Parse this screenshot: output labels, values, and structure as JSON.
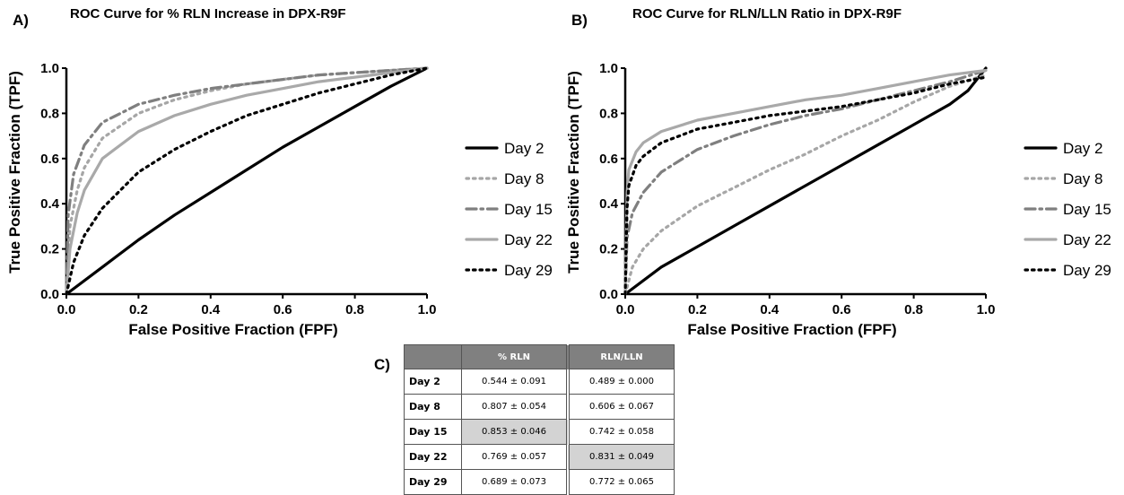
{
  "colors": {
    "day2": "#000000",
    "day8": "#a6a6a6",
    "day15": "#7f7f7f",
    "day22": "#a9a9a9",
    "day29": "#000000",
    "highlight": "#d3d3d3",
    "table_header": "#808080"
  },
  "chart_data": [
    {
      "type": "line",
      "panel": "A)",
      "title": "ROC Curve for % RLN Increase in DPX-R9F",
      "xlabel": "False Positive Fraction (FPF)",
      "ylabel": "True Positive Fraction (TPF)",
      "xlim": [
        0,
        1
      ],
      "ylim": [
        0,
        1
      ],
      "xticks": [
        "0.0",
        "0.2",
        "0.4",
        "0.6",
        "0.8",
        "1.0"
      ],
      "yticks": [
        "0.0",
        "0.2",
        "0.4",
        "0.6",
        "0.8",
        "1.0"
      ],
      "grid": false,
      "legend_position": "right",
      "series": [
        {
          "name": "Day 2",
          "style": "solid",
          "x": [
            0,
            0.1,
            0.2,
            0.3,
            0.4,
            0.5,
            0.6,
            0.7,
            0.8,
            0.9,
            1.0
          ],
          "y": [
            0,
            0.12,
            0.24,
            0.35,
            0.45,
            0.55,
            0.65,
            0.74,
            0.83,
            0.92,
            1.0
          ]
        },
        {
          "name": "Day 8",
          "style": "dotted",
          "x": [
            0,
            0.01,
            0.03,
            0.05,
            0.1,
            0.2,
            0.3,
            0.4,
            0.5,
            0.6,
            0.7,
            0.8,
            0.9,
            1.0
          ],
          "y": [
            0,
            0.3,
            0.46,
            0.56,
            0.69,
            0.8,
            0.86,
            0.9,
            0.93,
            0.95,
            0.97,
            0.98,
            0.99,
            1.0
          ]
        },
        {
          "name": "Day 15",
          "style": "dashdot",
          "x": [
            0,
            0.005,
            0.02,
            0.05,
            0.1,
            0.2,
            0.3,
            0.4,
            0.5,
            0.6,
            0.7,
            0.8,
            0.9,
            1.0
          ],
          "y": [
            0,
            0.35,
            0.53,
            0.66,
            0.76,
            0.84,
            0.88,
            0.91,
            0.93,
            0.95,
            0.97,
            0.98,
            0.99,
            1.0
          ]
        },
        {
          "name": "Day 22",
          "style": "solid",
          "x": [
            0,
            0.01,
            0.03,
            0.05,
            0.1,
            0.2,
            0.3,
            0.4,
            0.5,
            0.6,
            0.7,
            0.8,
            0.9,
            1.0
          ],
          "y": [
            0,
            0.2,
            0.36,
            0.46,
            0.6,
            0.72,
            0.79,
            0.84,
            0.88,
            0.91,
            0.94,
            0.96,
            0.98,
            1.0
          ]
        },
        {
          "name": "Day 29",
          "style": "dotted",
          "x": [
            0,
            0.02,
            0.05,
            0.1,
            0.2,
            0.3,
            0.4,
            0.5,
            0.6,
            0.7,
            0.8,
            0.9,
            1.0
          ],
          "y": [
            0,
            0.14,
            0.26,
            0.38,
            0.54,
            0.64,
            0.72,
            0.79,
            0.84,
            0.89,
            0.93,
            0.97,
            1.0
          ]
        }
      ]
    },
    {
      "type": "line",
      "panel": "B)",
      "title": "ROC Curve for RLN/LLN Ratio in DPX-R9F",
      "xlabel": "False Positive Fraction (FPF)",
      "ylabel": "True Positive Fraction (TPF)",
      "xlim": [
        0,
        1
      ],
      "ylim": [
        0,
        1
      ],
      "xticks": [
        "0.0",
        "0.2",
        "0.4",
        "0.6",
        "0.8",
        "1.0"
      ],
      "yticks": [
        "0.0",
        "0.2",
        "0.4",
        "0.6",
        "0.8",
        "1.0"
      ],
      "grid": false,
      "legend_position": "right",
      "series": [
        {
          "name": "Day 2",
          "style": "solid",
          "x": [
            0,
            0.1,
            0.2,
            0.3,
            0.4,
            0.5,
            0.6,
            0.7,
            0.8,
            0.9,
            0.95,
            1.0
          ],
          "y": [
            0,
            0.12,
            0.21,
            0.3,
            0.39,
            0.48,
            0.57,
            0.66,
            0.75,
            0.84,
            0.9,
            1.0
          ]
        },
        {
          "name": "Day 8",
          "style": "dotted",
          "x": [
            0,
            0.02,
            0.05,
            0.1,
            0.2,
            0.3,
            0.4,
            0.5,
            0.6,
            0.7,
            0.8,
            0.9,
            1.0
          ],
          "y": [
            0,
            0.12,
            0.2,
            0.28,
            0.39,
            0.47,
            0.55,
            0.62,
            0.7,
            0.77,
            0.85,
            0.92,
            0.97
          ]
        },
        {
          "name": "Day 15",
          "style": "dashdot",
          "x": [
            0,
            0.005,
            0.02,
            0.05,
            0.1,
            0.2,
            0.3,
            0.4,
            0.5,
            0.6,
            0.7,
            0.8,
            0.9,
            1.0
          ],
          "y": [
            0,
            0.25,
            0.36,
            0.45,
            0.54,
            0.64,
            0.7,
            0.75,
            0.79,
            0.82,
            0.86,
            0.9,
            0.94,
            0.99
          ]
        },
        {
          "name": "Day 22",
          "style": "solid",
          "x": [
            0,
            0.005,
            0.01,
            0.03,
            0.05,
            0.1,
            0.2,
            0.3,
            0.4,
            0.5,
            0.6,
            0.7,
            0.8,
            0.9,
            1.0
          ],
          "y": [
            0,
            0.45,
            0.55,
            0.63,
            0.67,
            0.72,
            0.77,
            0.8,
            0.83,
            0.86,
            0.88,
            0.91,
            0.94,
            0.97,
            0.99
          ]
        },
        {
          "name": "Day 29",
          "style": "dotted",
          "x": [
            0,
            0.005,
            0.01,
            0.03,
            0.05,
            0.1,
            0.2,
            0.3,
            0.4,
            0.5,
            0.6,
            0.7,
            0.8,
            0.9,
            1.0
          ],
          "y": [
            0,
            0.38,
            0.48,
            0.57,
            0.61,
            0.67,
            0.73,
            0.76,
            0.79,
            0.81,
            0.83,
            0.86,
            0.89,
            0.93,
            0.96
          ]
        }
      ]
    }
  ],
  "table": {
    "panel": "C)",
    "columns": [
      "",
      "% RLN",
      "RLN/LLN"
    ],
    "rows": [
      {
        "label": "Day 2",
        "rln": "0.544 ± 0.091",
        "ratio": "0.489 ± 0.000",
        "highlight": ""
      },
      {
        "label": "Day 8",
        "rln": "0.807 ± 0.054",
        "ratio": "0.606 ± 0.067",
        "highlight": ""
      },
      {
        "label": "Day 15",
        "rln": "0.853 ± 0.046",
        "ratio": "0.742 ± 0.058",
        "highlight": "rln"
      },
      {
        "label": "Day 22",
        "rln": "0.769 ± 0.057",
        "ratio": "0.831 ± 0.049",
        "highlight": "ratio"
      },
      {
        "label": "Day 29",
        "rln": "0.689 ± 0.073",
        "ratio": "0.772 ± 0.065",
        "highlight": ""
      }
    ]
  }
}
